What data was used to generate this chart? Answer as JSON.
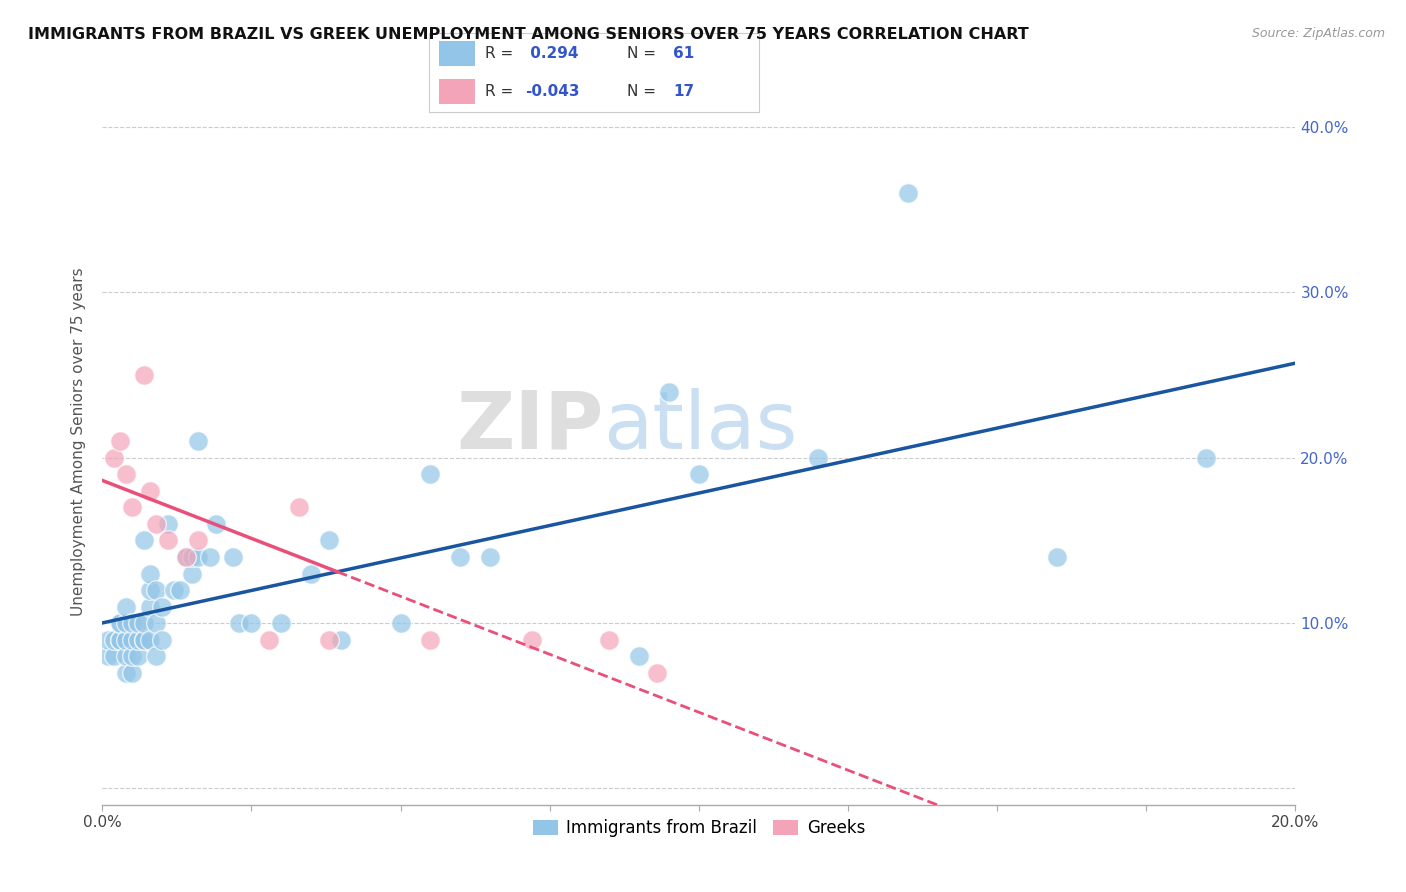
{
  "title": "IMMIGRANTS FROM BRAZIL VS GREEK UNEMPLOYMENT AMONG SENIORS OVER 75 YEARS CORRELATION CHART",
  "source": "Source: ZipAtlas.com",
  "ylabel": "Unemployment Among Seniors over 75 years",
  "xlim": [
    0.0,
    0.2
  ],
  "ylim": [
    -0.01,
    0.43
  ],
  "x_ticks": [
    0.0,
    0.025,
    0.05,
    0.075,
    0.1,
    0.125,
    0.15,
    0.175,
    0.2
  ],
  "y_ticks": [
    0.0,
    0.1,
    0.2,
    0.3,
    0.4
  ],
  "legend_brazil_r": "0.294",
  "legend_brazil_n": "61",
  "legend_greek_r": "-0.043",
  "legend_greek_n": "17",
  "brazil_color": "#92C5E8",
  "greek_color": "#F4A4B8",
  "brazil_line_color": "#1A56A0",
  "greek_line_color": "#E8507A",
  "watermark_zip": "ZIP",
  "watermark_atlas": "atlas",
  "brazil_x": [
    0.001,
    0.001,
    0.002,
    0.002,
    0.003,
    0.003,
    0.003,
    0.003,
    0.004,
    0.004,
    0.004,
    0.004,
    0.004,
    0.005,
    0.005,
    0.005,
    0.005,
    0.006,
    0.006,
    0.006,
    0.007,
    0.007,
    0.007,
    0.007,
    0.008,
    0.008,
    0.008,
    0.008,
    0.009,
    0.009,
    0.009,
    0.01,
    0.01,
    0.011,
    0.012,
    0.013,
    0.014,
    0.015,
    0.015,
    0.016,
    0.016,
    0.018,
    0.019,
    0.022,
    0.023,
    0.025,
    0.03,
    0.035,
    0.038,
    0.04,
    0.05,
    0.055,
    0.06,
    0.065,
    0.09,
    0.095,
    0.1,
    0.12,
    0.135,
    0.16,
    0.185
  ],
  "brazil_y": [
    0.08,
    0.09,
    0.08,
    0.09,
    0.09,
    0.09,
    0.1,
    0.1,
    0.07,
    0.08,
    0.09,
    0.1,
    0.11,
    0.07,
    0.08,
    0.09,
    0.1,
    0.08,
    0.09,
    0.1,
    0.09,
    0.09,
    0.1,
    0.15,
    0.09,
    0.11,
    0.12,
    0.13,
    0.08,
    0.1,
    0.12,
    0.09,
    0.11,
    0.16,
    0.12,
    0.12,
    0.14,
    0.13,
    0.14,
    0.14,
    0.21,
    0.14,
    0.16,
    0.14,
    0.1,
    0.1,
    0.1,
    0.13,
    0.15,
    0.09,
    0.1,
    0.19,
    0.14,
    0.14,
    0.08,
    0.24,
    0.19,
    0.2,
    0.36,
    0.14,
    0.2
  ],
  "greek_x": [
    0.002,
    0.003,
    0.004,
    0.005,
    0.007,
    0.008,
    0.009,
    0.011,
    0.014,
    0.016,
    0.028,
    0.033,
    0.038,
    0.055,
    0.072,
    0.085,
    0.093
  ],
  "greek_y": [
    0.2,
    0.21,
    0.19,
    0.17,
    0.25,
    0.18,
    0.16,
    0.15,
    0.14,
    0.15,
    0.09,
    0.17,
    0.09,
    0.09,
    0.09,
    0.09,
    0.07
  ]
}
